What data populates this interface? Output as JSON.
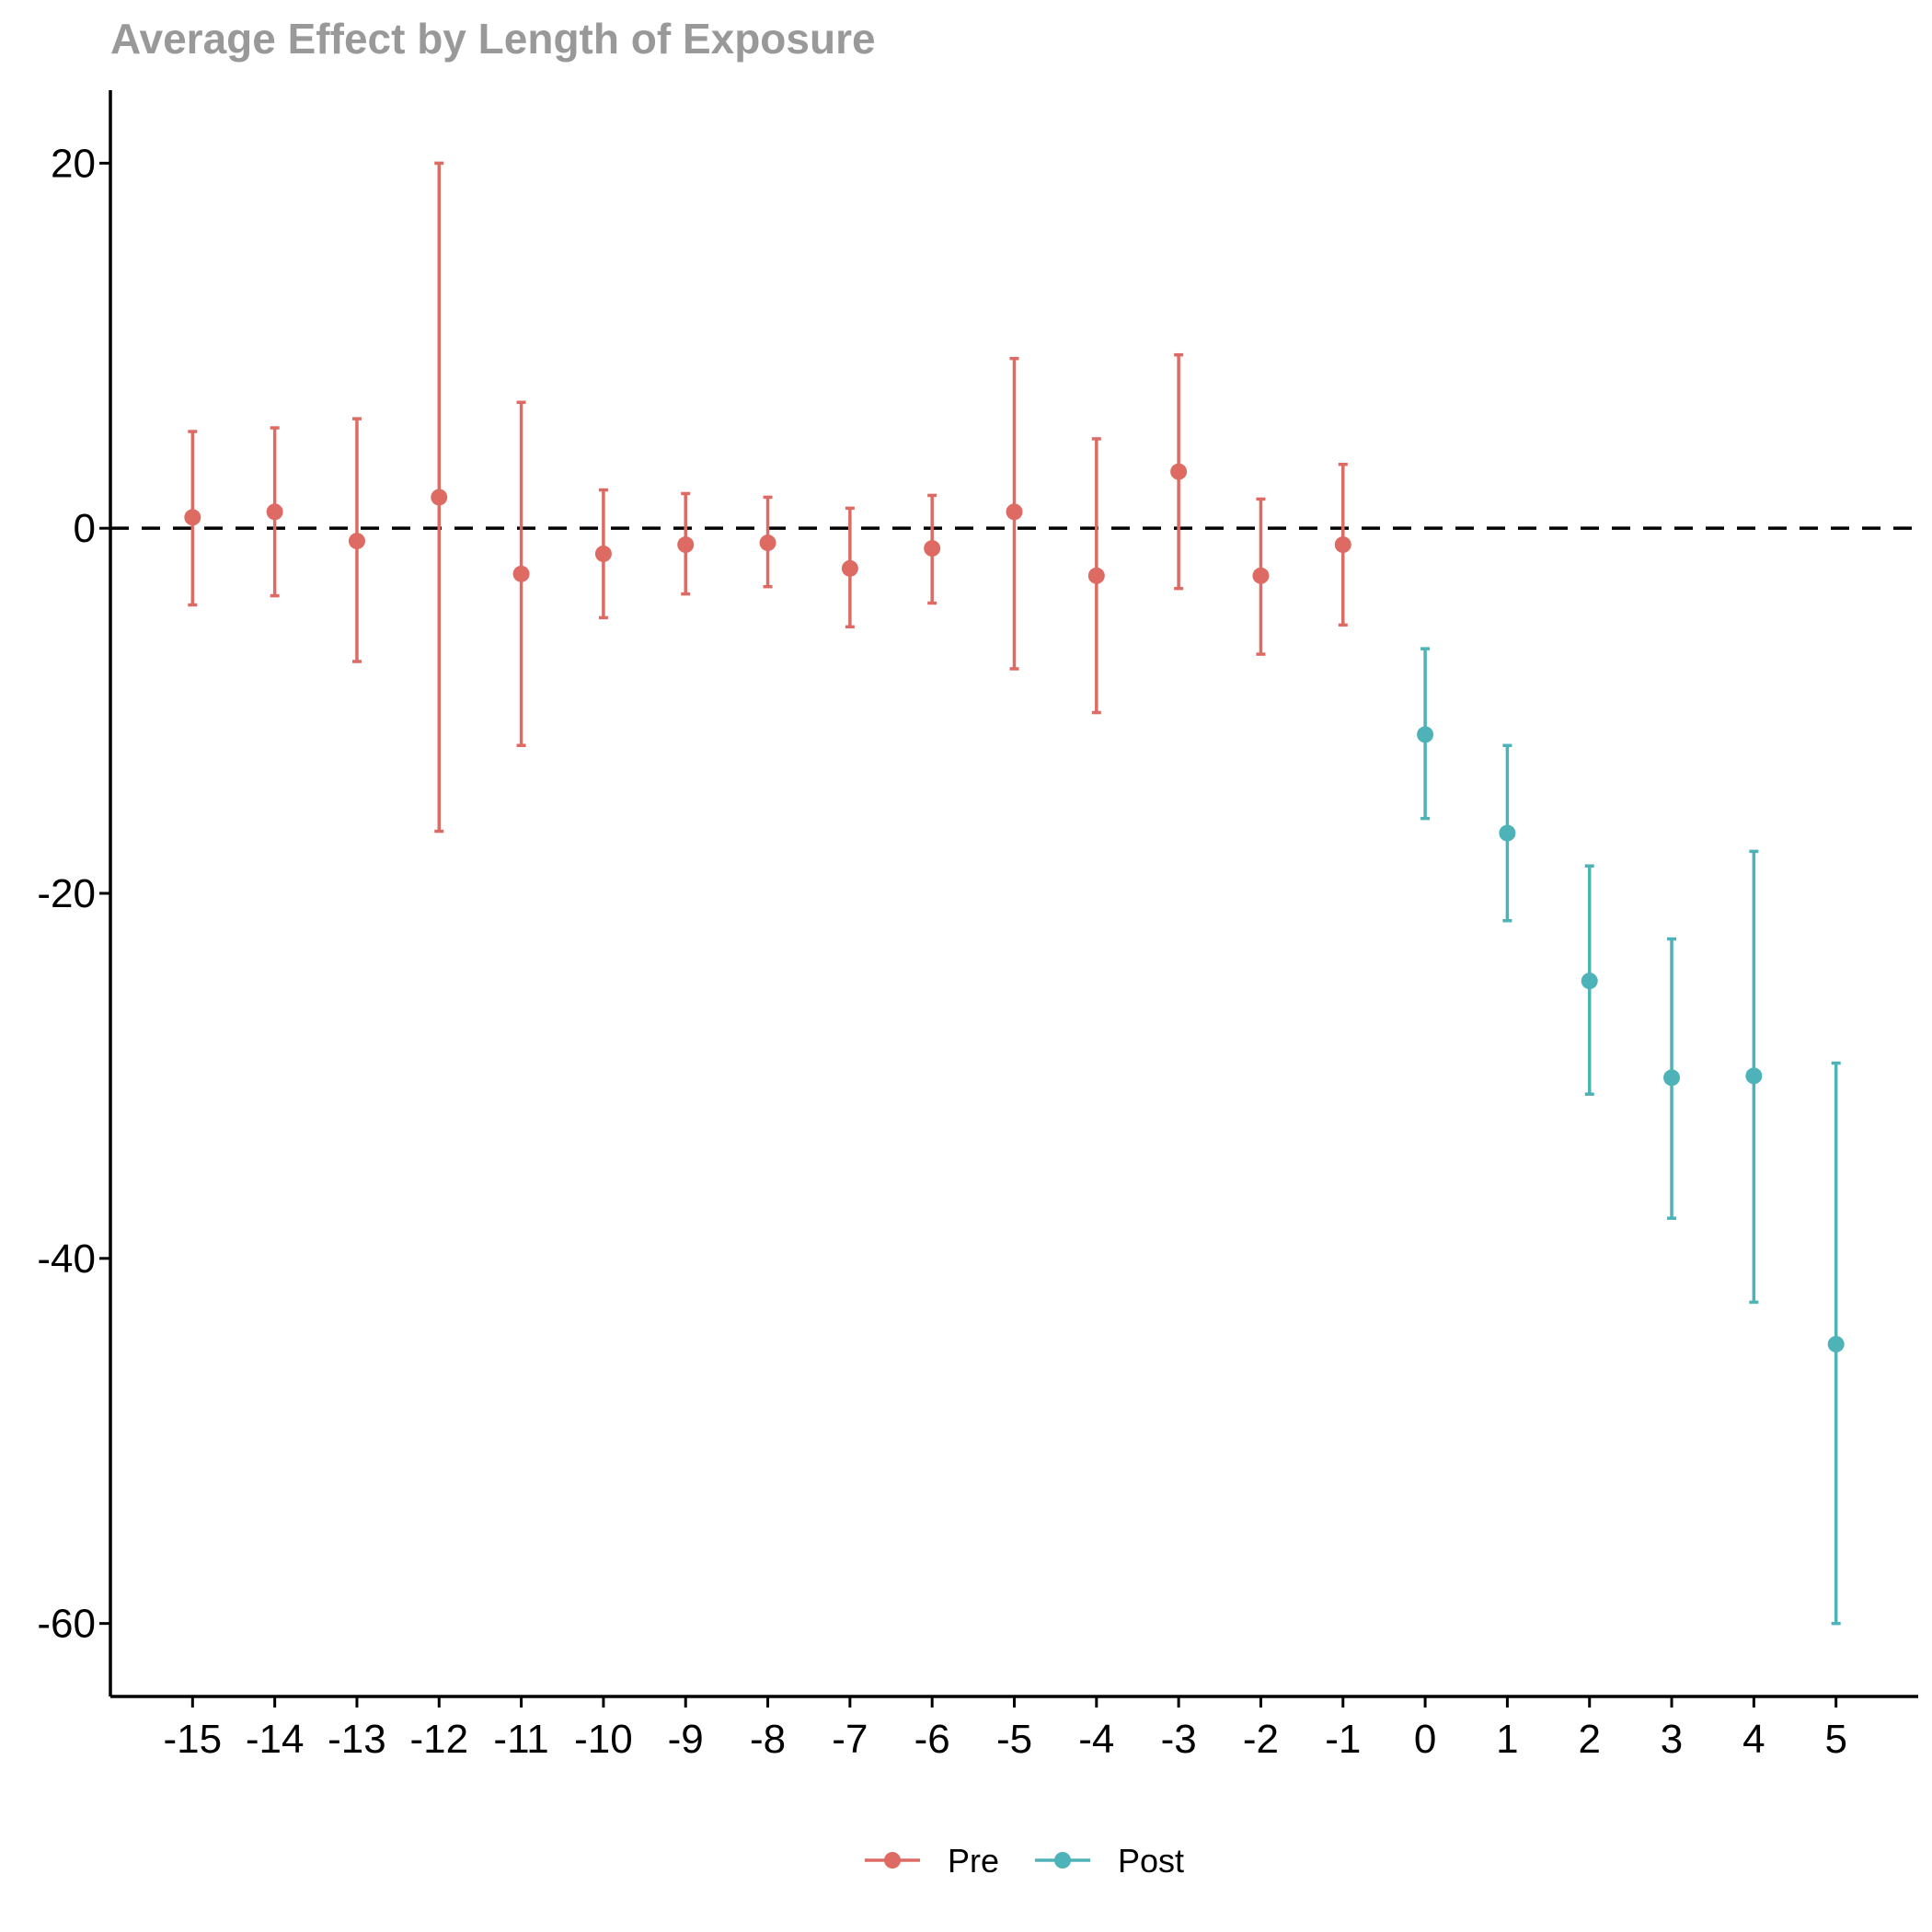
{
  "chart_data": {
    "type": "scatter",
    "title": "Average Effect by Length of Exposure",
    "xlabel": "",
    "ylabel": "",
    "x_ticks": [
      "-15",
      "-14",
      "-13",
      "-12",
      "-11",
      "-10",
      "-9",
      "-8",
      "-7",
      "-6",
      "-5",
      "-4",
      "-3",
      "-2",
      "-1",
      "0",
      "1",
      "2",
      "3",
      "4",
      "5"
    ],
    "y_ticks": [
      "20",
      "0",
      "-20",
      "-40",
      "-60"
    ],
    "xlim": [
      -16,
      6
    ],
    "ylim": [
      -64,
      24
    ],
    "reference_line": {
      "y": 0,
      "style": "dashed",
      "color": "#000000"
    },
    "grid": false,
    "legend_position": "bottom",
    "series": [
      {
        "name": "Pre",
        "color": "#DE6B63",
        "points": [
          {
            "x": -15,
            "y": 0.6,
            "low": -4.2,
            "high": 5.3
          },
          {
            "x": -14,
            "y": 0.9,
            "low": -3.7,
            "high": 5.5
          },
          {
            "x": -13,
            "y": -0.7,
            "low": -7.3,
            "high": 6.0
          },
          {
            "x": -12,
            "y": 1.7,
            "low": -16.6,
            "high": 20.0
          },
          {
            "x": -11,
            "y": -2.5,
            "low": -11.9,
            "high": 6.9
          },
          {
            "x": -10,
            "y": -1.4,
            "low": -4.9,
            "high": 2.1
          },
          {
            "x": -9,
            "y": -0.9,
            "low": -3.6,
            "high": 1.9
          },
          {
            "x": -8,
            "y": -0.8,
            "low": -3.2,
            "high": 1.7
          },
          {
            "x": -7,
            "y": -2.2,
            "low": -5.4,
            "high": 1.1
          },
          {
            "x": -6,
            "y": -1.1,
            "low": -4.1,
            "high": 1.8
          },
          {
            "x": -5,
            "y": 0.9,
            "low": -7.7,
            "high": 9.3
          },
          {
            "x": -4,
            "y": -2.6,
            "low": -10.1,
            "high": 4.9
          },
          {
            "x": -3,
            "y": 3.1,
            "low": -3.3,
            "high": 9.5
          },
          {
            "x": -2,
            "y": -2.6,
            "low": -6.9,
            "high": 1.6
          },
          {
            "x": -1,
            "y": -0.9,
            "low": -5.3,
            "high": 3.5
          }
        ]
      },
      {
        "name": "Post",
        "color": "#4EB3B8",
        "points": [
          {
            "x": 0,
            "y": -11.3,
            "low": -15.9,
            "high": -6.6
          },
          {
            "x": 1,
            "y": -16.7,
            "low": -21.5,
            "high": -11.9
          },
          {
            "x": 2,
            "y": -24.8,
            "low": -31.0,
            "high": -18.5
          },
          {
            "x": 3,
            "y": -30.1,
            "low": -37.8,
            "high": -22.5
          },
          {
            "x": 4,
            "y": -30.0,
            "low": -42.4,
            "high": -17.7
          },
          {
            "x": 5,
            "y": -44.7,
            "low": -60.0,
            "high": -29.3
          }
        ]
      }
    ]
  }
}
